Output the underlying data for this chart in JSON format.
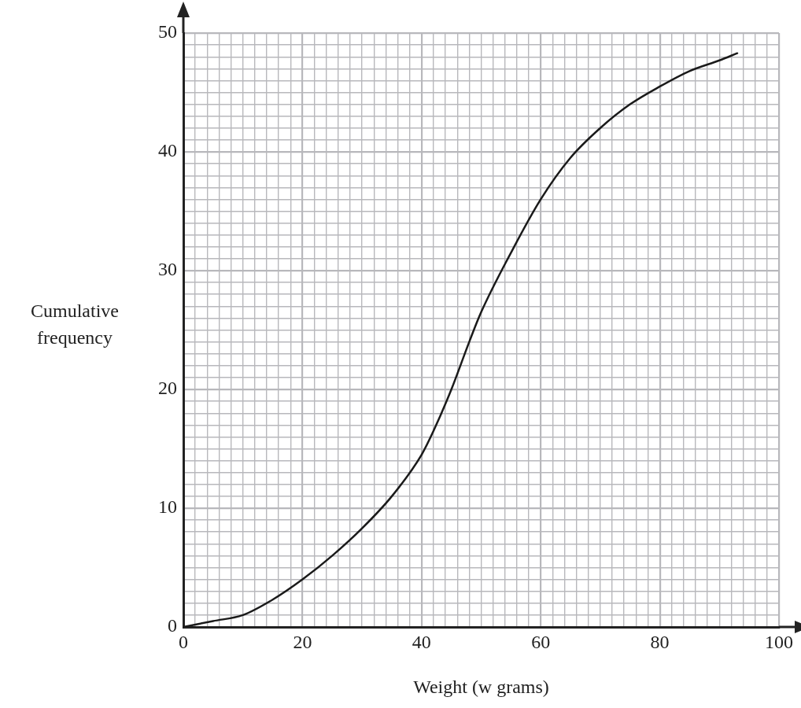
{
  "chart_data": {
    "type": "line",
    "xlabel": "Weight (w grams)",
    "ylabel": "Cumulative frequency",
    "x": [
      0,
      5,
      10,
      15,
      20,
      25,
      30,
      35,
      40,
      42,
      45,
      48,
      50,
      55,
      60,
      65,
      70,
      75,
      80,
      85,
      90,
      93
    ],
    "series": [
      {
        "color": "#1a1a1a",
        "values": [
          0,
          0.5,
          1,
          2.3,
          4,
          6,
          8.3,
          11,
          14.5,
          16.5,
          20,
          24,
          26.5,
          31.5,
          36,
          39.5,
          42,
          44,
          45.5,
          46.8,
          47.7,
          48.3
        ]
      }
    ],
    "xlim": [
      0,
      100
    ],
    "ylim": [
      0,
      50
    ],
    "xticks": [
      0,
      {
        "value": 2,
        "label": null
      },
      {
        "value": 4,
        "label": null
      },
      {
        "value": 6,
        "label": null
      },
      {
        "value": 8,
        "label": null
      },
      {
        "value": 10,
        "label": null
      },
      {
        "value": 12,
        "label": null
      },
      {
        "value": 14,
        "label": null
      },
      {
        "value": 16,
        "label": null
      },
      {
        "value": 18,
        "label": null
      },
      20,
      {
        "value": 22,
        "label": null
      },
      {
        "value": 24,
        "label": null
      },
      {
        "value": 26,
        "label": null
      },
      {
        "value": 28,
        "label": null
      },
      {
        "value": 30,
        "label": null
      },
      {
        "value": 32,
        "label": null
      },
      {
        "value": 34,
        "label": null
      },
      {
        "value": 36,
        "label": null
      },
      {
        "value": 38,
        "label": null
      },
      40,
      {
        "value": 42,
        "label": null
      },
      {
        "value": 44,
        "label": null
      },
      {
        "value": 46,
        "label": null
      },
      {
        "value": 48,
        "label": null
      },
      {
        "value": 50,
        "label": null
      },
      {
        "value": 52,
        "label": null
      },
      {
        "value": 54,
        "label": null
      },
      {
        "value": 56,
        "label": null
      },
      {
        "value": 58,
        "label": null
      },
      60,
      {
        "value": 62,
        "label": null
      },
      {
        "value": 64,
        "label": null
      },
      {
        "value": 66,
        "label": null
      },
      {
        "value": 68,
        "label": null
      },
      {
        "value": 70,
        "label": null
      },
      {
        "value": 72,
        "label": null
      },
      {
        "value": 74,
        "label": null
      },
      {
        "value": 76,
        "label": null
      },
      {
        "value": 78,
        "label": null
      },
      80,
      {
        "value": 82,
        "label": null
      },
      {
        "value": 84,
        "label": null
      },
      {
        "value": 86,
        "label": null
      },
      {
        "value": 88,
        "label": null
      },
      {
        "value": 90,
        "label": null
      },
      {
        "value": 92,
        "label": null
      },
      {
        "value": 94,
        "label": null
      },
      {
        "value": 96,
        "label": null
      },
      {
        "value": 98,
        "label": null
      },
      100
    ],
    "yticks": [
      0,
      {
        "value": 1,
        "label": null
      },
      {
        "value": 2,
        "label": null
      },
      {
        "value": 3,
        "label": null
      },
      {
        "value": 4,
        "label": null
      },
      {
        "value": 5,
        "label": null
      },
      {
        "value": 6,
        "label": null
      },
      {
        "value": 7,
        "label": null
      },
      {
        "value": 8,
        "label": null
      },
      {
        "value": 9,
        "label": null
      },
      10,
      {
        "value": 11,
        "label": null
      },
      {
        "value": 12,
        "label": null
      },
      {
        "value": 13,
        "label": null
      },
      {
        "value": 14,
        "label": null
      },
      {
        "value": 15,
        "label": null
      },
      {
        "value": 16,
        "label": null
      },
      {
        "value": 17,
        "label": null
      },
      {
        "value": 18,
        "label": null
      },
      {
        "value": 19,
        "label": null
      },
      20,
      {
        "value": 21,
        "label": null
      },
      {
        "value": 22,
        "label": null
      },
      {
        "value": 23,
        "label": null
      },
      {
        "value": 24,
        "label": null
      },
      {
        "value": 25,
        "label": null
      },
      {
        "value": 26,
        "label": null
      },
      {
        "value": 27,
        "label": null
      },
      {
        "value": 28,
        "label": null
      },
      {
        "value": 29,
        "label": null
      },
      30,
      {
        "value": 31,
        "label": null
      },
      {
        "value": 32,
        "label": null
      },
      {
        "value": 33,
        "label": null
      },
      {
        "value": 34,
        "label": null
      },
      {
        "value": 35,
        "label": null
      },
      {
        "value": 36,
        "label": null
      },
      {
        "value": 37,
        "label": null
      },
      {
        "value": 38,
        "label": null
      },
      {
        "value": 39,
        "label": null
      },
      40,
      {
        "value": 41,
        "label": null
      },
      {
        "value": 42,
        "label": null
      },
      {
        "value": 43,
        "label": null
      },
      {
        "value": 44,
        "label": null
      },
      {
        "value": 45,
        "label": null
      },
      {
        "value": 46,
        "label": null
      },
      {
        "value": 47,
        "label": null
      },
      {
        "value": 48,
        "label": null
      },
      {
        "value": 49,
        "label": null
      },
      50
    ],
    "grid": true,
    "legend": false,
    "marker": "none",
    "line_style": "solid"
  }
}
